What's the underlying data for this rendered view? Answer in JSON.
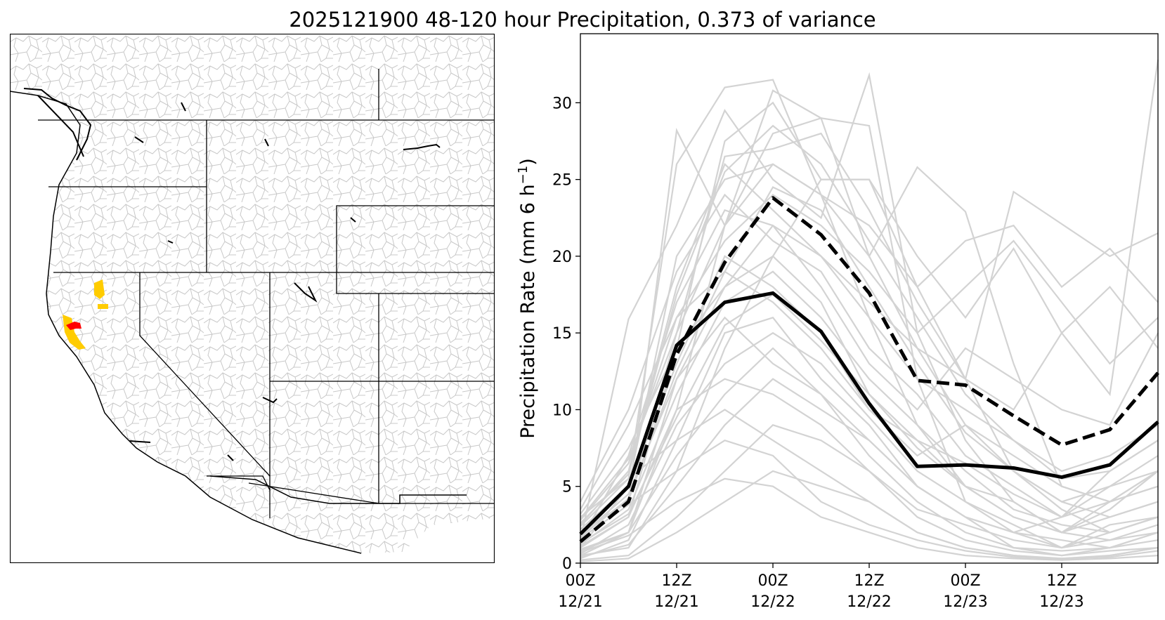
{
  "figure": {
    "title": "2025121900 48-120 hour Precipitation, 0.373 of variance"
  },
  "map": {
    "highlight_colors": {
      "primary": "#ff0000",
      "secondary": "#ffcc00"
    },
    "boundary_color": "#000000",
    "basin_color": "#c8c8c8"
  },
  "chart_data": {
    "type": "line",
    "ylabel": "Precipitation Rate (mm 6 h",
    "ylabel_sup": "−1",
    "ylabel_end": ")",
    "ylim": [
      0,
      34.5
    ],
    "xlim": [
      0,
      12
    ],
    "yticks": [
      0,
      5,
      10,
      15,
      20,
      25,
      30
    ],
    "xticks": [
      {
        "x": 0,
        "line1": "00Z",
        "line2": "12/21"
      },
      {
        "x": 2,
        "line1": "12Z",
        "line2": "12/21"
      },
      {
        "x": 4,
        "line1": "00Z",
        "line2": "12/22"
      },
      {
        "x": 6,
        "line1": "12Z",
        "line2": "12/22"
      },
      {
        "x": 8,
        "line1": "00Z",
        "line2": "12/23"
      },
      {
        "x": 10,
        "line1": "12Z",
        "line2": "12/23"
      }
    ],
    "x": [
      0,
      1,
      2,
      3,
      4,
      5,
      6,
      7,
      8,
      9,
      10,
      11,
      12
    ],
    "colors": {
      "members": "#d3d3d3",
      "mean": "#000000",
      "dashed": "#000000"
    },
    "series": [
      {
        "style": "solid",
        "values": [
          1.9,
          5.0,
          14.2,
          17.0,
          17.6,
          15.1,
          10.4,
          6.3,
          6.4,
          6.2,
          5.6,
          6.4,
          9.2
        ]
      },
      {
        "style": "dashed",
        "values": [
          1.4,
          4.0,
          13.6,
          19.6,
          23.8,
          21.4,
          17.6,
          11.9,
          11.6,
          9.6,
          7.7,
          8.7,
          12.4
        ]
      }
    ],
    "members": [
      [
        3.0,
        5.5,
        26.0,
        31.0,
        31.5,
        24.0,
        16.0,
        9.0,
        5.0,
        3.0,
        2.0,
        3.5,
        6.0
      ],
      [
        2.0,
        4.0,
        28.2,
        22.0,
        30.8,
        29.0,
        28.5,
        12.0,
        4.0,
        2.5,
        1.0,
        2.0,
        3.0
      ],
      [
        1.5,
        15.9,
        22.0,
        29.5,
        25.0,
        22.5,
        31.8,
        15.0,
        8.0,
        4.0,
        2.0,
        1.5,
        2.5
      ],
      [
        1.0,
        3.0,
        14.0,
        27.5,
        30.0,
        25.0,
        25.0,
        18.0,
        12.0,
        6.0,
        3.5,
        2.0,
        3.0
      ],
      [
        0.5,
        2.0,
        10.0,
        22.0,
        28.0,
        29.0,
        20.0,
        25.8,
        22.9,
        13.0,
        5.0,
        4.0,
        6.0
      ],
      [
        2.5,
        6.0,
        18.0,
        26.0,
        23.0,
        20.0,
        17.0,
        14.0,
        12.0,
        24.2,
        22.1,
        20.0,
        21.5
      ],
      [
        1.0,
        5.0,
        20.0,
        25.0,
        26.0,
        24.0,
        22.0,
        18.0,
        21.0,
        22.0,
        18.0,
        20.5,
        17.0
      ],
      [
        3.5,
        9.0,
        16.0,
        21.0,
        24.0,
        22.0,
        19.0,
        15.0,
        18.0,
        21.0,
        17.0,
        13.0,
        16.0
      ],
      [
        0.8,
        2.0,
        12.0,
        18.0,
        20.0,
        25.0,
        25.0,
        20.0,
        16.0,
        20.5,
        15.0,
        18.0,
        14.0
      ],
      [
        2.0,
        4.0,
        15.0,
        26.5,
        27.0,
        28.0,
        23.0,
        17.0,
        12.0,
        10.0,
        15.0,
        11.0,
        32.8
      ],
      [
        1.5,
        7.0,
        17.0,
        23.0,
        22.0,
        18.0,
        13.0,
        10.0,
        14.0,
        12.0,
        10.0,
        9.0,
        15.0
      ],
      [
        0.5,
        1.0,
        6.0,
        14.0,
        20.0,
        17.0,
        11.0,
        8.0,
        5.0,
        4.0,
        2.0,
        4.0,
        5.0
      ],
      [
        2.2,
        5.0,
        13.0,
        20.0,
        18.0,
        15.0,
        10.0,
        7.0,
        9.0,
        6.0,
        4.0,
        3.0,
        4.0
      ],
      [
        0.3,
        1.5,
        8.0,
        15.0,
        16.0,
        12.0,
        9.0,
        5.0,
        3.0,
        2.0,
        1.5,
        1.0,
        2.0
      ],
      [
        4.0,
        10.0,
        19.0,
        24.0,
        21.0,
        19.0,
        14.0,
        11.0,
        7.0,
        5.0,
        3.0,
        4.0,
        5.0
      ],
      [
        1.2,
        3.5,
        11.0,
        17.0,
        19.0,
        16.0,
        12.0,
        9.0,
        6.0,
        3.5,
        2.5,
        2.0,
        3.0
      ],
      [
        0.6,
        2.5,
        9.0,
        13.0,
        15.0,
        13.0,
        9.5,
        6.0,
        4.0,
        2.0,
        1.0,
        1.5,
        2.0
      ],
      [
        2.8,
        6.5,
        16.0,
        19.0,
        17.0,
        14.0,
        10.0,
        8.0,
        6.5,
        4.5,
        3.0,
        5.0,
        6.0
      ],
      [
        1.8,
        4.5,
        12.0,
        16.0,
        13.0,
        11.0,
        8.0,
        5.0,
        3.0,
        2.0,
        3.0,
        6.0,
        8.0
      ],
      [
        0.9,
        2.0,
        7.0,
        11.0,
        14.0,
        11.0,
        7.0,
        4.0,
        2.0,
        1.0,
        0.8,
        1.0,
        1.5
      ],
      [
        3.2,
        7.5,
        14.0,
        18.0,
        22.0,
        20.0,
        16.0,
        12.0,
        10.0,
        8.0,
        6.0,
        7.0,
        9.0
      ],
      [
        1.1,
        3.0,
        10.0,
        12.0,
        11.0,
        9.0,
        6.0,
        3.5,
        2.5,
        1.5,
        1.0,
        2.5,
        3.0
      ],
      [
        0.4,
        1.2,
        5.0,
        9.0,
        12.0,
        10.0,
        8.0,
        5.0,
        3.0,
        1.0,
        0.5,
        0.8,
        1.0
      ],
      [
        2.4,
        5.5,
        8.0,
        10.0,
        8.0,
        6.0,
        4.0,
        2.0,
        1.0,
        0.5,
        0.3,
        0.5,
        1.0
      ],
      [
        1.6,
        3.8,
        6.0,
        8.0,
        7.0,
        4.0,
        2.5,
        1.5,
        0.8,
        0.4,
        0.3,
        0.4,
        0.8
      ],
      [
        0.7,
        1.8,
        4.0,
        5.5,
        5.0,
        3.0,
        2.0,
        1.0,
        0.5,
        0.3,
        0.2,
        0.3,
        0.5
      ],
      [
        2.9,
        6.8,
        15.0,
        22.0,
        26.0,
        24.0,
        20.0,
        14.0,
        9.0,
        7.0,
        5.0,
        4.0,
        6.0
      ],
      [
        1.3,
        3.2,
        9.5,
        15.5,
        17.5,
        14.5,
        11.0,
        7.5,
        5.0,
        3.0,
        2.0,
        3.0,
        4.0
      ],
      [
        0.2,
        0.5,
        3.0,
        6.0,
        9.0,
        8.0,
        6.0,
        3.0,
        1.5,
        0.8,
        0.5,
        1.0,
        2.0
      ],
      [
        1.7,
        4.2,
        12.5,
        19.0,
        24.5,
        23.0,
        18.0,
        13.0,
        8.5,
        6.0,
        4.0,
        5.0,
        7.0
      ],
      [
        0.1,
        0.3,
        2.0,
        4.0,
        6.0,
        5.0,
        4.0,
        2.0,
        1.0,
        0.5,
        0.2,
        0.5,
        1.0
      ],
      [
        2.6,
        5.8,
        17.5,
        25.5,
        28.5,
        26.0,
        21.0,
        16.0,
        11.0,
        8.0,
        5.5,
        6.0,
        8.0
      ]
    ]
  }
}
